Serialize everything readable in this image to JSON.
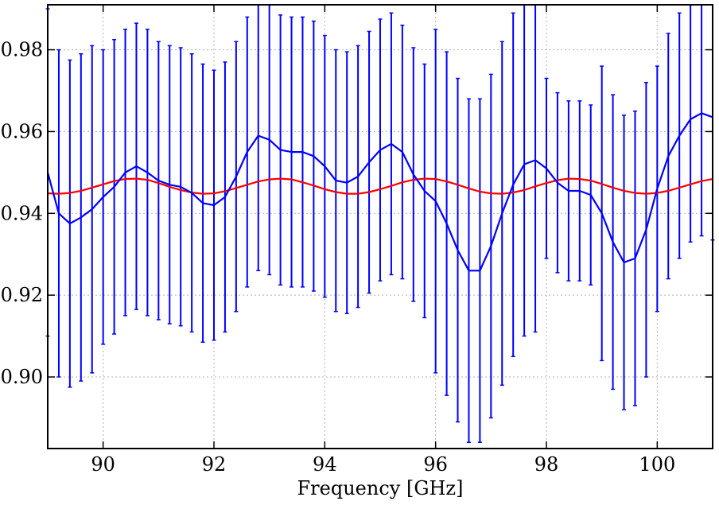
{
  "chart_data": {
    "type": "line",
    "title": "",
    "xlabel": "Frequency [GHz]",
    "ylabel": "",
    "xlim": [
      89.0,
      101.0
    ],
    "ylim": [
      0.8825,
      0.991
    ],
    "x_ticks": [
      90,
      92,
      94,
      96,
      98,
      100
    ],
    "x_tick_labels": [
      "90",
      "92",
      "94",
      "96",
      "98",
      "100"
    ],
    "y_ticks": [
      0.9,
      0.92,
      0.94,
      0.96,
      0.98
    ],
    "y_tick_labels": [
      "0.90",
      "0.92",
      "0.94",
      "0.96",
      "0.98"
    ],
    "grid": true,
    "legend": "none",
    "colors": {
      "measured": "#0000ff",
      "model": "#ff0000",
      "grid": "#b0b0b0"
    },
    "series": [
      {
        "role": "measured-with-error-bars",
        "x": [
          89.0,
          89.2,
          89.4,
          89.6,
          89.8,
          90.0,
          90.2,
          90.4,
          90.6,
          90.8,
          91.0,
          91.2,
          91.4,
          91.6,
          91.8,
          92.0,
          92.2,
          92.4,
          92.6,
          92.8,
          93.0,
          93.2,
          93.4,
          93.6,
          93.8,
          94.0,
          94.2,
          94.4,
          94.6,
          94.8,
          95.0,
          95.2,
          95.4,
          95.6,
          95.8,
          96.0,
          96.2,
          96.4,
          96.6,
          96.8,
          97.0,
          97.2,
          97.4,
          97.6,
          97.8,
          98.0,
          98.2,
          98.4,
          98.6,
          98.8,
          99.0,
          99.2,
          99.4,
          99.6,
          99.8,
          100.0,
          100.2,
          100.4,
          100.6,
          100.8,
          101.0
        ],
        "y": [
          0.95,
          0.94,
          0.9375,
          0.939,
          0.941,
          0.944,
          0.9465,
          0.95,
          0.9515,
          0.95,
          0.948,
          0.947,
          0.9465,
          0.945,
          0.9425,
          0.942,
          0.944,
          0.949,
          0.955,
          0.959,
          0.958,
          0.9555,
          0.955,
          0.955,
          0.954,
          0.9515,
          0.948,
          0.9475,
          0.949,
          0.9525,
          0.9555,
          0.957,
          0.955,
          0.9495,
          0.9455,
          0.943,
          0.9375,
          0.931,
          0.926,
          0.926,
          0.932,
          0.94,
          0.947,
          0.952,
          0.953,
          0.951,
          0.9475,
          0.9455,
          0.9455,
          0.9445,
          0.94,
          0.933,
          0.928,
          0.929,
          0.936,
          0.946,
          0.954,
          0.959,
          0.963,
          0.9645,
          0.9635
        ],
        "err": [
          0.04,
          0.04,
          0.04,
          0.04,
          0.04,
          0.036,
          0.036,
          0.035,
          0.035,
          0.035,
          0.034,
          0.034,
          0.034,
          0.034,
          0.034,
          0.033,
          0.033,
          0.033,
          0.033,
          0.033,
          0.033,
          0.033,
          0.033,
          0.033,
          0.033,
          0.032,
          0.032,
          0.032,
          0.032,
          0.032,
          0.032,
          0.032,
          0.031,
          0.031,
          0.031,
          0.042,
          0.042,
          0.042,
          0.042,
          0.042,
          0.042,
          0.042,
          0.042,
          0.042,
          0.042,
          0.022,
          0.022,
          0.022,
          0.022,
          0.022,
          0.036,
          0.036,
          0.036,
          0.036,
          0.036,
          0.03,
          0.03,
          0.03,
          0.03,
          0.03,
          0.03
        ]
      },
      {
        "role": "model",
        "x": [
          89.0,
          89.2,
          89.4,
          89.6,
          89.8,
          90.0,
          90.2,
          90.4,
          90.6,
          90.8,
          91.0,
          91.2,
          91.4,
          91.6,
          91.8,
          92.0,
          92.2,
          92.4,
          92.6,
          92.8,
          93.0,
          93.2,
          93.4,
          93.6,
          93.8,
          94.0,
          94.2,
          94.4,
          94.6,
          94.8,
          95.0,
          95.2,
          95.4,
          95.6,
          95.8,
          96.0,
          96.2,
          96.4,
          96.6,
          96.8,
          97.0,
          97.2,
          97.4,
          97.6,
          97.8,
          98.0,
          98.2,
          98.4,
          98.6,
          98.8,
          99.0,
          99.2,
          99.4,
          99.6,
          99.8,
          100.0,
          100.2,
          100.4,
          100.6,
          100.8,
          101.0
        ],
        "y": [
          0.9449,
          0.9448,
          0.945,
          0.9455,
          0.9463,
          0.9471,
          0.9479,
          0.9484,
          0.9485,
          0.9482,
          0.9474,
          0.9465,
          0.9457,
          0.9451,
          0.9448,
          0.9449,
          0.9454,
          0.9462,
          0.947,
          0.9478,
          0.9483,
          0.9485,
          0.9483,
          0.9476,
          0.9468,
          0.9459,
          0.9452,
          0.9448,
          0.9448,
          0.9452,
          0.9459,
          0.9467,
          0.9476,
          0.9482,
          0.9485,
          0.9484,
          0.9478,
          0.947,
          0.9461,
          0.9453,
          0.9449,
          0.9448,
          0.9451,
          0.9457,
          0.9466,
          0.9474,
          0.9481,
          0.9485,
          0.9484,
          0.948,
          0.9472,
          0.9463,
          0.9455,
          0.945,
          0.9448,
          0.945,
          0.9455,
          0.9463,
          0.9471,
          0.9479,
          0.9484
        ]
      }
    ]
  }
}
